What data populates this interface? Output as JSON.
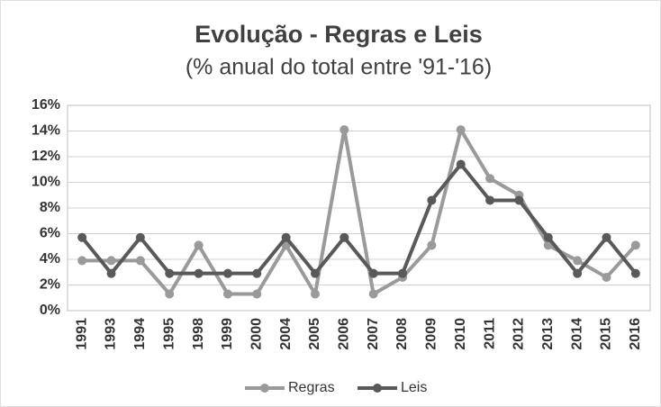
{
  "chart_data": {
    "type": "line",
    "title": "Evolução - Regras e Leis",
    "subtitle": "(% anual do total entre '91-'16)",
    "categories": [
      "1991",
      "1993",
      "1994",
      "1995",
      "1998",
      "1999",
      "2000",
      "2004",
      "2005",
      "2006",
      "2007",
      "2008",
      "2009",
      "2010",
      "2011",
      "2012",
      "2013",
      "2014",
      "2015",
      "2016"
    ],
    "series": [
      {
        "name": "Regras",
        "color": "#9a9a9a",
        "values": [
          3.9,
          3.9,
          3.9,
          1.3,
          5.1,
          1.3,
          1.3,
          5.1,
          1.3,
          14.1,
          1.3,
          2.6,
          5.1,
          14.1,
          10.3,
          9.0,
          5.1,
          3.9,
          2.6,
          5.1
        ]
      },
      {
        "name": "Leis",
        "color": "#595959",
        "values": [
          5.7,
          2.9,
          5.7,
          2.9,
          2.9,
          2.9,
          2.9,
          5.7,
          2.9,
          5.7,
          2.9,
          2.9,
          8.6,
          11.4,
          8.6,
          8.6,
          5.7,
          2.9,
          5.7,
          2.9
        ]
      }
    ],
    "ylim": [
      0,
      16
    ],
    "yticks": [
      {
        "value": 0,
        "label": "0%"
      },
      {
        "value": 2,
        "label": "2%"
      },
      {
        "value": 4,
        "label": "4%"
      },
      {
        "value": 6,
        "label": "6%"
      },
      {
        "value": 8,
        "label": "8%"
      },
      {
        "value": 10,
        "label": "10%"
      },
      {
        "value": 12,
        "label": "12%"
      },
      {
        "value": 14,
        "label": "14%"
      },
      {
        "value": 16,
        "label": "16%"
      }
    ],
    "grid": true,
    "legend": "bottom"
  }
}
